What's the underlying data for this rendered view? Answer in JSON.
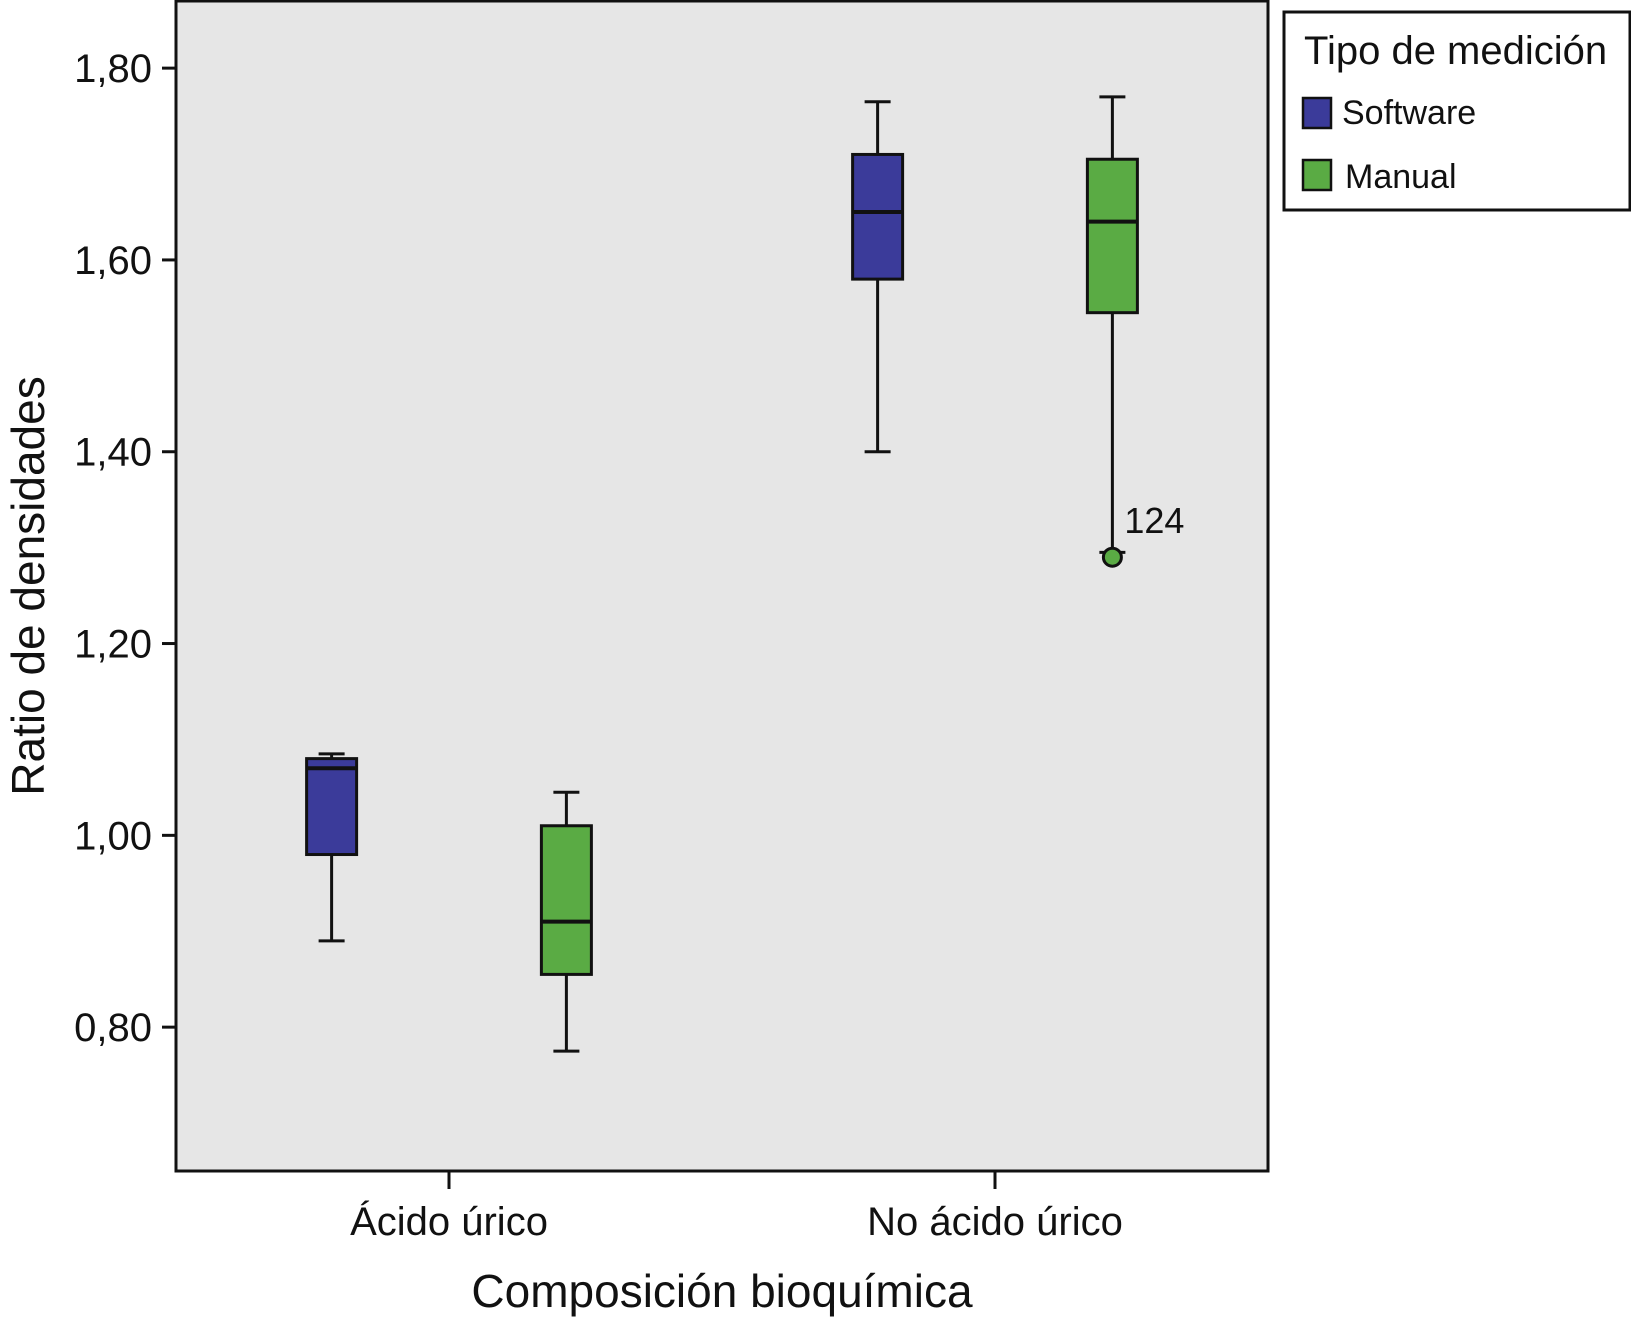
{
  "chart_data": {
    "type": "boxplot",
    "xlabel": "Composición bioquímica",
    "ylabel": "Ratio de densidades",
    "ylim": [
      0.65,
      1.87
    ],
    "yticks": [
      0.8,
      1.0,
      1.2,
      1.4,
      1.6,
      1.8
    ],
    "ytick_labels": [
      "0,80",
      "1,00",
      "1,20",
      "1,40",
      "1,60",
      "1,80"
    ],
    "grid": false,
    "categories": [
      "Ácido úrico",
      "No ácido úrico"
    ],
    "legend": {
      "title": "Tipo de medición",
      "position": "top-right-outside"
    },
    "series": [
      {
        "name": "Software",
        "color": "#3b3b9a",
        "boxes": [
          {
            "category": "Ácido úrico",
            "min": 0.89,
            "q1": 0.98,
            "median": 1.07,
            "q3": 1.08,
            "max": 1.085,
            "outliers": []
          },
          {
            "category": "No ácido úrico",
            "min": 1.4,
            "q1": 1.58,
            "median": 1.65,
            "q3": 1.71,
            "max": 1.765,
            "outliers": []
          }
        ]
      },
      {
        "name": "Manual",
        "color": "#5aab44",
        "boxes": [
          {
            "category": "Ácido úrico",
            "min": 0.775,
            "q1": 0.855,
            "median": 0.91,
            "q3": 1.01,
            "max": 1.045,
            "outliers": []
          },
          {
            "category": "No ácido úrico",
            "min": 1.295,
            "q1": 1.545,
            "median": 1.64,
            "q3": 1.705,
            "max": 1.77,
            "outliers": [
              {
                "value": 1.29,
                "label": "124"
              }
            ]
          }
        ]
      }
    ]
  }
}
